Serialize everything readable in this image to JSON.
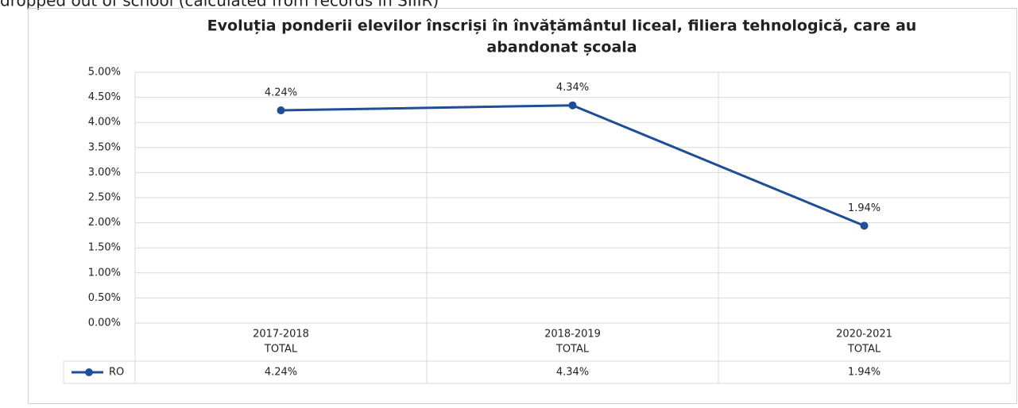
{
  "caption": "dropped out of school (calculated from records in SIIIR)",
  "chart_data": {
    "type": "line",
    "title": [
      "Evoluția ponderii elevilor înscriși în învățământul liceal, filiera tehnologică, care au",
      "abandonat școala"
    ],
    "categories": [
      [
        "2017-2018",
        "TOTAL"
      ],
      [
        "2018-2019",
        "TOTAL"
      ],
      [
        "2020-2021",
        "TOTAL"
      ]
    ],
    "series": [
      {
        "name": "RO",
        "color": "#1f4e96",
        "values": [
          4.24,
          4.34,
          1.94
        ],
        "value_labels": [
          "4.24%",
          "4.34%",
          "1.94%"
        ]
      }
    ],
    "ylim": [
      0,
      5
    ],
    "yticks": [
      {
        "value": 0,
        "label": "0.00%"
      },
      {
        "value": 0.5,
        "label": "0.50%"
      },
      {
        "value": 1,
        "label": "1.00%"
      },
      {
        "value": 1.5,
        "label": "1.50%"
      },
      {
        "value": 2,
        "label": "2.00%"
      },
      {
        "value": 2.5,
        "label": "2.50%"
      },
      {
        "value": 3,
        "label": "3.00%"
      },
      {
        "value": 3.5,
        "label": "3.50%"
      },
      {
        "value": 4,
        "label": "4.00%"
      },
      {
        "value": 4.5,
        "label": "4.50%"
      },
      {
        "value": 5,
        "label": "5.00%"
      }
    ],
    "grid": true,
    "data_table": true
  }
}
